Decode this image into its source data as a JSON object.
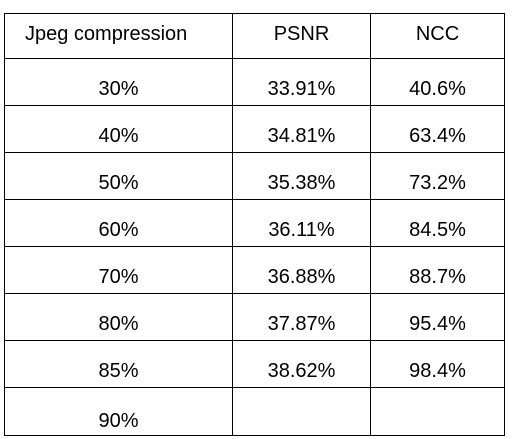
{
  "table": {
    "headers": [
      "Jpeg compression",
      "PSNR",
      "NCC"
    ],
    "rows": [
      [
        "30%",
        "33.91%",
        "40.6%"
      ],
      [
        "40%",
        "34.81%",
        "63.4%"
      ],
      [
        "50%",
        "35.38%",
        "73.2%"
      ],
      [
        "60%",
        "36.11%",
        "84.5%"
      ],
      [
        "70%",
        "36.88%",
        "88.7%"
      ],
      [
        "80%",
        "37.87%",
        "95.4%"
      ],
      [
        "85%",
        "38.62%",
        "98.4%"
      ],
      [
        "90%",
        "",
        ""
      ]
    ]
  }
}
